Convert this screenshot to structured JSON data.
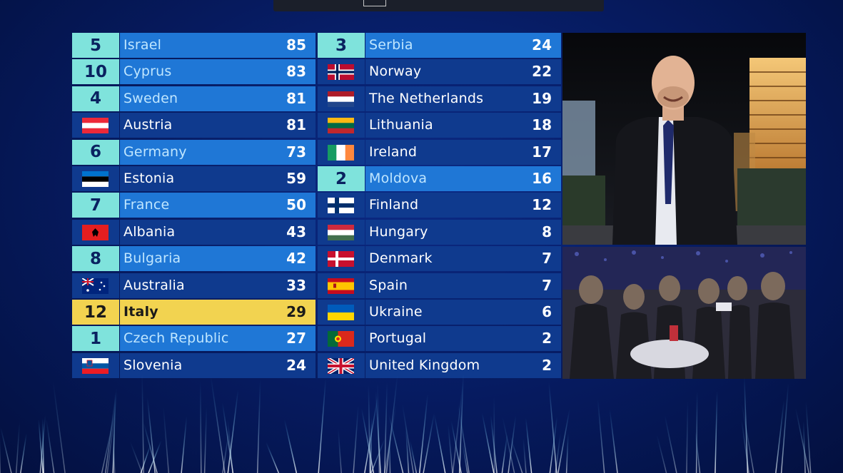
{
  "scoreboard": {
    "left": [
      {
        "points": "5",
        "country": "Israel",
        "total": "85",
        "style": "light",
        "flag": ""
      },
      {
        "points": "10",
        "country": "Cyprus",
        "total": "83",
        "style": "light",
        "flag": ""
      },
      {
        "points": "4",
        "country": "Sweden",
        "total": "81",
        "style": "light",
        "flag": ""
      },
      {
        "points": "",
        "country": "Austria",
        "total": "81",
        "style": "dark",
        "flag": "austria-flag-icon"
      },
      {
        "points": "6",
        "country": "Germany",
        "total": "73",
        "style": "light",
        "flag": ""
      },
      {
        "points": "",
        "country": "Estonia",
        "total": "59",
        "style": "dark",
        "flag": "estonia-flag-icon"
      },
      {
        "points": "7",
        "country": "France",
        "total": "50",
        "style": "light",
        "flag": ""
      },
      {
        "points": "",
        "country": "Albania",
        "total": "43",
        "style": "dark",
        "flag": "albania-flag-icon"
      },
      {
        "points": "8",
        "country": "Bulgaria",
        "total": "42",
        "style": "light",
        "flag": ""
      },
      {
        "points": "",
        "country": "Australia",
        "total": "33",
        "style": "dark",
        "flag": "australia-flag-icon"
      },
      {
        "points": "12",
        "country": "Italy",
        "total": "29",
        "style": "highlight",
        "flag": ""
      },
      {
        "points": "1",
        "country": "Czech Republic",
        "total": "27",
        "style": "light",
        "flag": ""
      },
      {
        "points": "",
        "country": "Slovenia",
        "total": "24",
        "style": "dark",
        "flag": "slovenia-flag-icon"
      }
    ],
    "right": [
      {
        "points": "3",
        "country": "Serbia",
        "total": "24",
        "style": "light",
        "flag": ""
      },
      {
        "points": "",
        "country": "Norway",
        "total": "22",
        "style": "dark",
        "flag": "norway-flag-icon"
      },
      {
        "points": "",
        "country": "The Netherlands",
        "total": "19",
        "style": "dark",
        "flag": "netherlands-flag-icon"
      },
      {
        "points": "",
        "country": "Lithuania",
        "total": "18",
        "style": "dark",
        "flag": "lithuania-flag-icon"
      },
      {
        "points": "",
        "country": "Ireland",
        "total": "17",
        "style": "dark",
        "flag": "ireland-flag-icon"
      },
      {
        "points": "2",
        "country": "Moldova",
        "total": "16",
        "style": "light",
        "flag": ""
      },
      {
        "points": "",
        "country": "Finland",
        "total": "12",
        "style": "dark",
        "flag": "finland-flag-icon"
      },
      {
        "points": "",
        "country": "Hungary",
        "total": "8",
        "style": "dark",
        "flag": "hungary-flag-icon"
      },
      {
        "points": "",
        "country": "Denmark",
        "total": "7",
        "style": "dark",
        "flag": "denmark-flag-icon"
      },
      {
        "points": "",
        "country": "Spain",
        "total": "7",
        "style": "dark",
        "flag": "spain-flag-icon"
      },
      {
        "points": "",
        "country": "Ukraine",
        "total": "6",
        "style": "dark",
        "flag": "ukraine-flag-icon"
      },
      {
        "points": "",
        "country": "Portugal",
        "total": "2",
        "style": "dark",
        "flag": "portugal-flag-icon"
      },
      {
        "points": "",
        "country": "United Kingdom",
        "total": "2",
        "style": "dark",
        "flag": "united-kingdom-flag-icon"
      }
    ]
  },
  "colors": {
    "dark_row": "#0f3a8e",
    "light_row": "#1f77d6",
    "points_cell": "#7fe3dc",
    "highlight_row": "#f2d350",
    "background": "#061a5e"
  }
}
